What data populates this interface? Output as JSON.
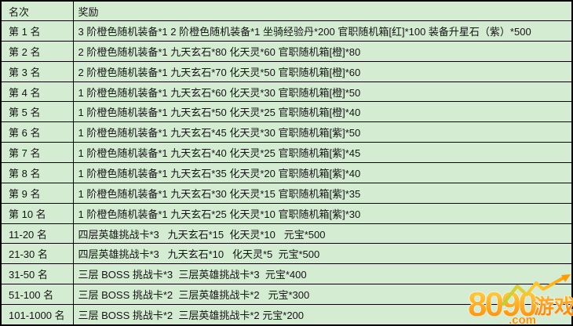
{
  "colors": {
    "cell_background": "#d4ecd2",
    "border": "#000000",
    "text": "#141414",
    "logo_orange": "#ff8400",
    "logo_yellow": "#ffd94f",
    "logo_line_yellow_green": "#b8d432"
  },
  "table": {
    "columns": [
      {
        "label": "名次"
      },
      {
        "label": "奖励"
      }
    ],
    "rows": [
      {
        "rank": "第 1 名",
        "reward": "3 阶橙色随机装备*1 2 阶橙色随机装备*1 坐骑经验丹*200 官职随机箱[红]*100 装备升星石（紫）*500"
      },
      {
        "rank": "第 2 名",
        "reward": "2 阶橙色随机装备*1 九天玄石*80 化天灵*60 官职随机箱[橙]*80"
      },
      {
        "rank": "第 3 名",
        "reward": "2 阶橙色随机装备*1 九天玄石*70 化天灵*50 官职随机箱[橙]*60"
      },
      {
        "rank": "第 4 名",
        "reward": "1 阶橙色随机装备*1 九天玄石*60 化天灵*30 官职随机箱[橙]*50"
      },
      {
        "rank": "第 5 名",
        "reward": "1 阶橙色随机装备*1 九天玄石*50 化天灵*25 官职随机箱[橙]*40"
      },
      {
        "rank": "第 6 名",
        "reward": "1 阶橙色随机装备*1 九天玄石*45 化天灵*30 官职随机箱[紫]*50"
      },
      {
        "rank": "第 7 名",
        "reward": "1 阶橙色随机装备*1 九天玄石*40 化天灵*25 官职随机箱[紫]*45"
      },
      {
        "rank": "第 8 名",
        "reward": "1 阶橙色随机装备*1 九天玄石*35 化天灵*20 官职随机箱[紫]*40"
      },
      {
        "rank": "第 9 名",
        "reward": "1 阶橙色随机装备*1 九天玄石*30 化天灵*15 官职随机箱[紫]*35"
      },
      {
        "rank": "第 10 名",
        "reward": "1 阶橙色随机装备*1 九天玄石*25 化天灵*10 官职随机箱[紫]*30"
      },
      {
        "rank": "11-20 名",
        "reward": "四层英雄挑战卡*3   九天玄石*15  化天灵*10   元宝*500"
      },
      {
        "rank": "21-30 名",
        "reward": "四层英雄挑战卡*3   九天玄石*10   化天灵*5  元宝*500"
      },
      {
        "rank": "31-50 名",
        "reward": "三层 BOSS 挑战卡*3  三层英雄挑战卡*3  元宝*400"
      },
      {
        "rank": "51-100 名",
        "reward": "三层 BOSS 挑战卡*2  三层英雄挑战卡*2   元宝*300"
      },
      {
        "rank": "101-1000 名",
        "reward": "三层 BOSS 挑战卡*2  三层英雄挑战卡*2 元宝*200"
      }
    ]
  },
  "watermark": {
    "number": "8090",
    "domain": ".com",
    "suffix": "游戏"
  }
}
